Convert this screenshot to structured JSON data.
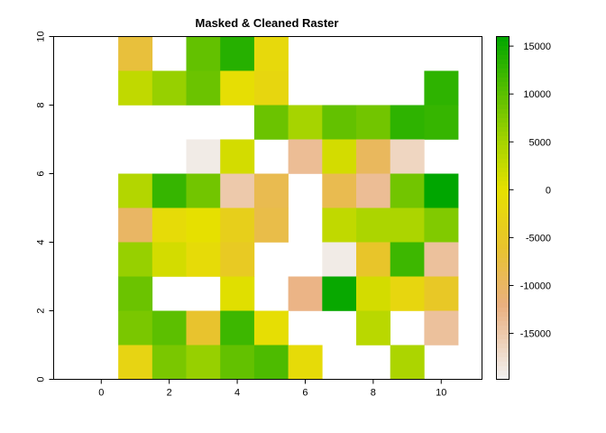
{
  "chart_data": {
    "type": "heatmap",
    "title": "Masked & Cleaned Raster",
    "xlabel": "",
    "ylabel": "",
    "xlim": [
      -1.4,
      11.2
    ],
    "ylim": [
      0,
      10
    ],
    "xticks": [
      0,
      2,
      4,
      6,
      8,
      10
    ],
    "yticks": [
      0,
      2,
      4,
      6,
      8,
      10
    ],
    "cell_size": 1,
    "grid": false,
    "legend": "right",
    "colorbar": {
      "min": -19800,
      "max": 16000,
      "ticks": [
        15000,
        10000,
        5000,
        0,
        -5000,
        -10000,
        -15000
      ],
      "stops": [
        {
          "value": -19800,
          "color": "#f2f2f2"
        },
        {
          "value": -12000,
          "color": "#eab07f"
        },
        {
          "value": -6000,
          "color": "#e8c32e"
        },
        {
          "value": 0,
          "color": "#e6e000"
        },
        {
          "value": 5000,
          "color": "#a6d400"
        },
        {
          "value": 10000,
          "color": "#5cbf00"
        },
        {
          "value": 16000,
          "color": "#00a600"
        }
      ]
    },
    "rows_top_to_bottom": [
      [
        null,
        -7000,
        null,
        9500,
        13500,
        -1500,
        null,
        null,
        null,
        null,
        null
      ],
      [
        null,
        3000,
        6000,
        9000,
        -500,
        -2000,
        null,
        null,
        null,
        null,
        13000
      ],
      [
        null,
        null,
        null,
        null,
        null,
        9000,
        5000,
        9500,
        8500,
        13000,
        12500
      ],
      [
        null,
        null,
        null,
        -19000,
        1500,
        null,
        -13500,
        1500,
        -9500,
        -16500,
        null
      ],
      [
        null,
        4000,
        12500,
        8500,
        -15000,
        -8500,
        null,
        -8500,
        -13500,
        8500,
        16000
      ],
      [
        null,
        -10000,
        -1000,
        0,
        -3500,
        -8000,
        null,
        3000,
        4500,
        4500,
        7500
      ],
      [
        null,
        6000,
        1500,
        -1000,
        -4500,
        null,
        null,
        -19000,
        -5500,
        12000,
        -14000
      ],
      [
        null,
        9000,
        null,
        null,
        500,
        null,
        -12500,
        15500,
        1500,
        -2000,
        -5000
      ],
      [
        null,
        8000,
        10000,
        -6000,
        12000,
        -500,
        null,
        null,
        3500,
        null,
        -14000
      ],
      [
        null,
        -2500,
        8000,
        6000,
        9500,
        11000,
        -1000,
        null,
        null,
        4500,
        null
      ]
    ]
  }
}
